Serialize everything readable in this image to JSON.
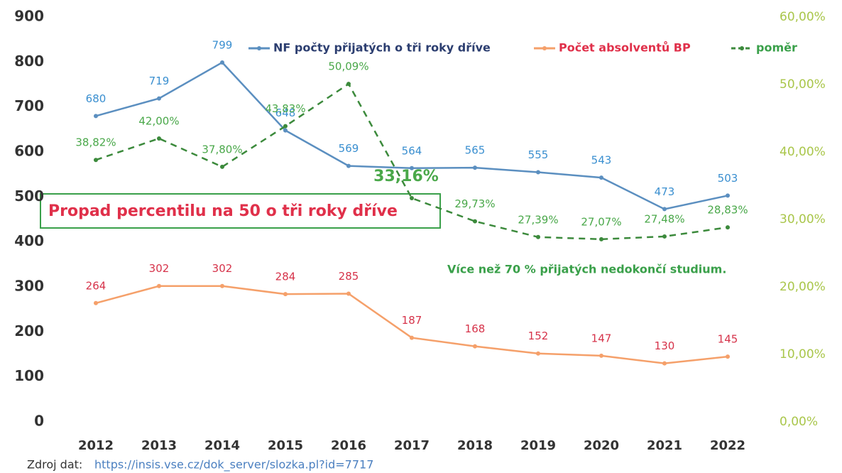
{
  "chart_data": {
    "type": "line",
    "categories": [
      "2012",
      "2013",
      "2014",
      "2015",
      "2016",
      "2017",
      "2018",
      "2019",
      "2020",
      "2021",
      "2022"
    ],
    "series": [
      {
        "name": "NF počty přijatých o tři roky dříve",
        "color": "#5b8fc0",
        "values": [
          680,
          719,
          799,
          648,
          569,
          564,
          565,
          555,
          543,
          473,
          503
        ]
      },
      {
        "name": "Počet absolventů BP",
        "color": "#f5a06a",
        "values": [
          264,
          302,
          302,
          284,
          285,
          187,
          168,
          152,
          147,
          130,
          145
        ]
      },
      {
        "name": "poměr",
        "color": "#3c8a3c",
        "axis": "y2",
        "values": [
          38.82,
          42.0,
          37.8,
          43.83,
          50.09,
          33.16,
          29.73,
          27.39,
          27.07,
          27.48,
          28.83
        ],
        "value_labels": [
          "38,82%",
          "42,00%",
          "37,80%",
          "43,83%",
          "50,09%",
          "33,16%",
          "29,73%",
          "27,39%",
          "27,07%",
          "27,48%",
          "28,83%"
        ]
      }
    ],
    "ylim": [
      0,
      900
    ],
    "yticks": [
      0,
      100,
      200,
      300,
      400,
      500,
      600,
      700,
      800,
      900
    ],
    "y2lim": [
      0,
      60
    ],
    "y2ticks": [
      {
        "value": 0,
        "label": "0,00%"
      },
      {
        "value": 10,
        "label": "10,00%"
      },
      {
        "value": 20,
        "label": "20,00%"
      },
      {
        "value": 30,
        "label": "30,00%"
      },
      {
        "value": 40,
        "label": "40,00%"
      },
      {
        "value": 50,
        "label": "50,00%"
      },
      {
        "value": 60,
        "label": "60,00%"
      }
    ],
    "annotations": [
      "Propad percentilu na 50 o tři roky dříve",
      "Více než 70 % přijatých nedokončí studium."
    ],
    "source": "Zdroj dat:",
    "source_url": "https://insis.vse.cz/dok_server/slozka.pl?id=7717"
  }
}
